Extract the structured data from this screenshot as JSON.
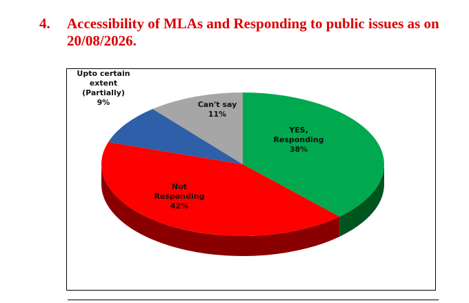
{
  "heading": {
    "number": "4.",
    "line1": "Accessibility of MLAs and Responding to public issues as on",
    "line2": "20/08/2026."
  },
  "chart_data": {
    "type": "pie",
    "style": "3d",
    "slices": [
      {
        "label_lines": [
          "YES,",
          "Responding",
          "38%"
        ],
        "value": 38,
        "color": "#00a94f",
        "side_color": "#00551f"
      },
      {
        "label_lines": [
          "Not",
          "Responding",
          "42%"
        ],
        "value": 42,
        "color": "#ff0000",
        "side_color": "#8a0000"
      },
      {
        "label_lines": [
          "Upto certain",
          "extent",
          "(Partially)",
          "9%"
        ],
        "value": 9,
        "color": "#2e5fa8",
        "side_color": "#1a3a6b"
      },
      {
        "label_lines": [
          "Can't say",
          "11%"
        ],
        "value": 11,
        "color": "#a6a6a6",
        "side_color": "#6e6e6e"
      }
    ]
  }
}
